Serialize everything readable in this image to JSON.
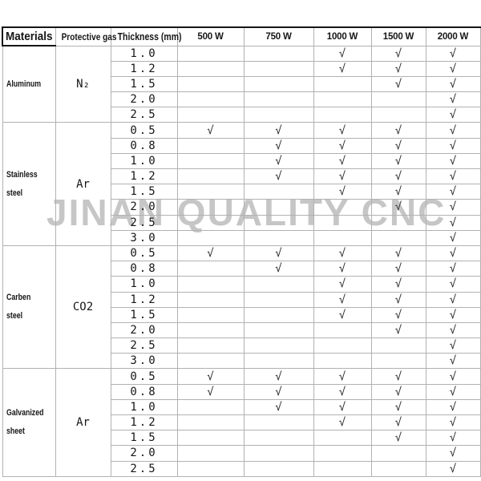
{
  "watermark": "JINAN QUALITY CNC",
  "colors": {
    "watermark_gray": "#c6c6c6",
    "grid_line": "#b2b2b2",
    "heavy_border": "#161616",
    "text": "#161616"
  },
  "table": {
    "headers": [
      "Materials",
      "Protective gas",
      "Thickness (mm)",
      "500 W",
      "750 W",
      "1000 W",
      "1500 W",
      "2000 W"
    ],
    "power_columns": [
      "500 W",
      "750 W",
      "1000 W",
      "1500 W",
      "2000 W"
    ],
    "check_glyph": "√",
    "sections": [
      {
        "material": "Aluminum",
        "gas": "N₂",
        "rows": [
          {
            "thickness": "1.0",
            "checks": [
              false,
              false,
              true,
              true,
              true
            ]
          },
          {
            "thickness": "1.2",
            "checks": [
              false,
              false,
              true,
              true,
              true
            ]
          },
          {
            "thickness": "1.5",
            "checks": [
              false,
              false,
              false,
              true,
              true
            ]
          },
          {
            "thickness": "2.0",
            "checks": [
              false,
              false,
              false,
              false,
              true
            ]
          },
          {
            "thickness": "2.5",
            "checks": [
              false,
              false,
              false,
              false,
              true
            ]
          }
        ]
      },
      {
        "material": "Stainless steel",
        "gas": "Ar",
        "rows": [
          {
            "thickness": "0.5",
            "checks": [
              true,
              true,
              true,
              true,
              true
            ]
          },
          {
            "thickness": "0.8",
            "checks": [
              false,
              true,
              true,
              true,
              true
            ]
          },
          {
            "thickness": "1.0",
            "checks": [
              false,
              true,
              true,
              true,
              true
            ]
          },
          {
            "thickness": "1.2",
            "checks": [
              false,
              true,
              true,
              true,
              true
            ]
          },
          {
            "thickness": "1.5",
            "checks": [
              false,
              false,
              true,
              true,
              true
            ]
          },
          {
            "thickness": "2.0",
            "checks": [
              false,
              false,
              false,
              true,
              true
            ]
          },
          {
            "thickness": "2.5",
            "checks": [
              false,
              false,
              false,
              false,
              true
            ]
          },
          {
            "thickness": "3.0",
            "checks": [
              false,
              false,
              false,
              false,
              true
            ]
          }
        ]
      },
      {
        "material": "Carben steel",
        "gas": "CO2",
        "rows": [
          {
            "thickness": "0.5",
            "checks": [
              true,
              true,
              true,
              true,
              true
            ]
          },
          {
            "thickness": "0.8",
            "checks": [
              false,
              true,
              true,
              true,
              true
            ]
          },
          {
            "thickness": "1.0",
            "checks": [
              false,
              false,
              true,
              true,
              true
            ]
          },
          {
            "thickness": "1.2",
            "checks": [
              false,
              false,
              true,
              true,
              true
            ]
          },
          {
            "thickness": "1.5",
            "checks": [
              false,
              false,
              true,
              true,
              true
            ]
          },
          {
            "thickness": "2.0",
            "checks": [
              false,
              false,
              false,
              true,
              true
            ]
          },
          {
            "thickness": "2.5",
            "checks": [
              false,
              false,
              false,
              false,
              true
            ]
          },
          {
            "thickness": "3.0",
            "checks": [
              false,
              false,
              false,
              false,
              true
            ]
          }
        ]
      },
      {
        "material": "Galvanized\nsheet",
        "gas": "Ar",
        "rows": [
          {
            "thickness": "0.5",
            "checks": [
              true,
              true,
              true,
              true,
              true
            ]
          },
          {
            "thickness": "0.8",
            "checks": [
              true,
              true,
              true,
              true,
              true
            ]
          },
          {
            "thickness": "1.0",
            "checks": [
              false,
              true,
              true,
              true,
              true
            ]
          },
          {
            "thickness": "1.2",
            "checks": [
              false,
              false,
              true,
              true,
              true
            ]
          },
          {
            "thickness": "1.5",
            "checks": [
              false,
              false,
              false,
              true,
              true
            ]
          },
          {
            "thickness": "2.0",
            "checks": [
              false,
              false,
              false,
              false,
              true
            ]
          },
          {
            "thickness": "2.5",
            "checks": [
              false,
              false,
              false,
              false,
              true
            ]
          }
        ]
      }
    ]
  }
}
